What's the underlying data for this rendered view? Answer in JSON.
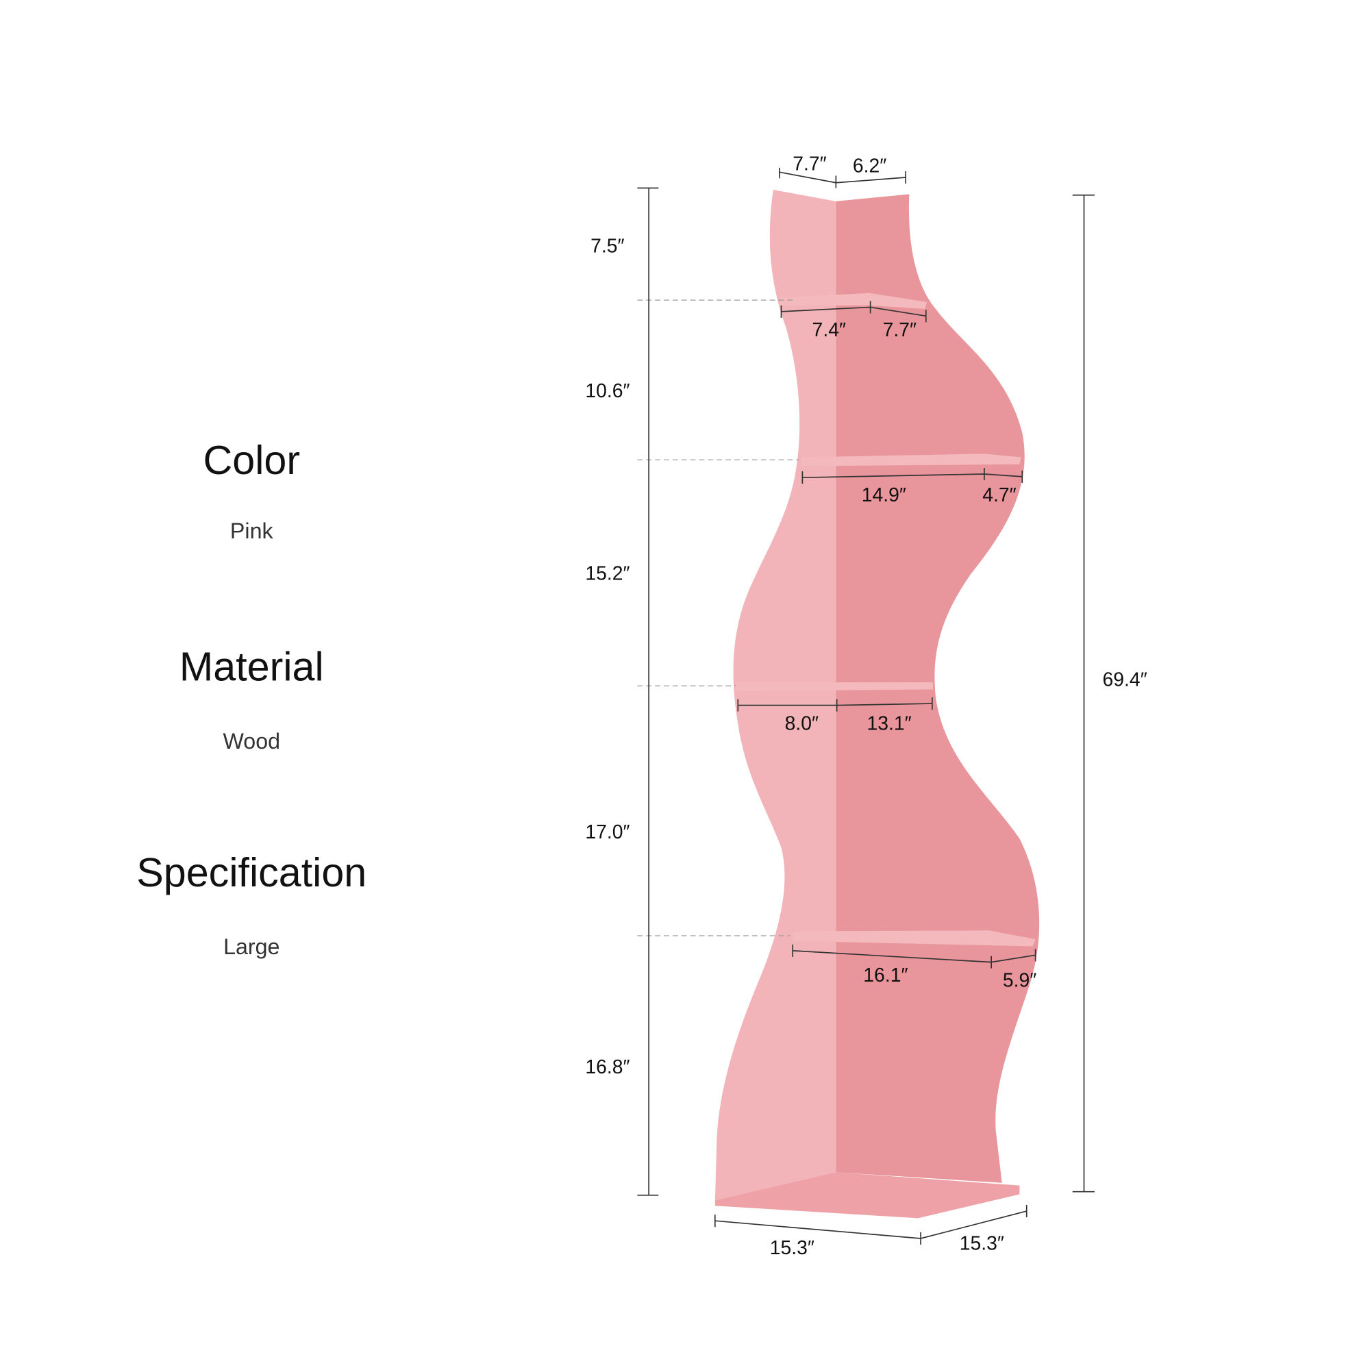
{
  "specs": [
    {
      "title": "Color",
      "value": "Pink"
    },
    {
      "title": "Material",
      "value": "Wood"
    },
    {
      "title": "Specification",
      "value": "Large"
    }
  ],
  "colors": {
    "panel_light": "#f2b4b8",
    "panel_dark": "#e8959b",
    "shelf": "#f3b9bc"
  },
  "dimensions": {
    "top_left": "7.7″",
    "top_right": "6.2″",
    "heights": [
      "7.5″",
      "10.6″",
      "15.2″",
      "17.0″",
      "16.8″"
    ],
    "total_height": "69.4″",
    "shelf1": [
      "7.4″",
      "7.7″"
    ],
    "shelf2": [
      "14.9″",
      "4.7″"
    ],
    "shelf3": [
      "8.0″",
      "13.1″"
    ],
    "shelf4": [
      "16.1″",
      "5.9″"
    ],
    "base": [
      "15.3″",
      "15.3″"
    ]
  }
}
